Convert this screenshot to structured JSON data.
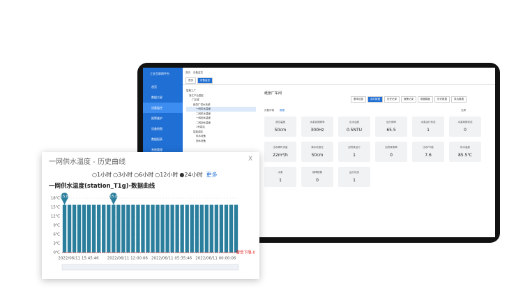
{
  "app": {
    "logo_text": "工业互联网平台",
    "menu": [
      "首页",
      "数据大屏",
      "设备监控",
      "报警维护",
      "设备地图",
      "数据报表",
      "系统管理"
    ],
    "breadcrumb": [
      "首页",
      "设备监控"
    ],
    "tabs": [
      "首页",
      "设备监控"
    ],
    "tree": [
      "智慧工厂",
      "浙江产业园区",
      "厂区域",
      "纸张厂供水系统",
      "一网供水温度",
      "二网供水温度",
      "一网回水温度",
      "二网回水温度",
      "1号泵站",
      "智能调控",
      "供水设备",
      "回水设备"
    ],
    "panel_title": "纸张厂车间",
    "panel_tabs": [
      "基本信息",
      "实时数据",
      "历史记录",
      "报警记录",
      "数据模板",
      "历史数据",
      "导出数据"
    ],
    "sub_tabs": [
      "设备详情",
      "数据"
    ],
    "view_label": "全屏",
    "cards": [
      {
        "label": "液位高度",
        "value": "50cm"
      },
      {
        "label": "水泵变频频率",
        "value": "300Hz"
      },
      {
        "label": "出水浊度",
        "value": "0.5NTU"
      },
      {
        "label": "运行频率",
        "value": "65.5"
      },
      {
        "label": "水泵运行状态",
        "value": "1"
      },
      {
        "label": "水泵故障状态",
        "value": "0"
      },
      {
        "label": "出水瞬时流量",
        "value": "22m³/h"
      },
      {
        "label": "清水池液位",
        "value": "50cm"
      },
      {
        "label": "加药泵运行",
        "value": "1"
      },
      {
        "label": "加药泵故障",
        "value": "0"
      },
      {
        "label": "出水PH值",
        "value": "7.6"
      },
      {
        "label": "供水温度",
        "value": "85.5℃"
      },
      {
        "label": "水泵",
        "value": "1"
      },
      {
        "label": "故障报警",
        "value": "0"
      },
      {
        "label": "运行状态",
        "value": "1"
      }
    ]
  },
  "popup": {
    "title": "一网供水温度 - 历史曲线",
    "close": "X",
    "ranges": [
      "○1小时",
      "○3小时",
      "○6小时",
      "○12小时",
      "●24小时"
    ],
    "more": "更多"
  },
  "chart_data": {
    "type": "bar",
    "title": "一网供水温度(station_T1g)-数据曲线",
    "categories": [
      "2022/06/11 15:45:46",
      null,
      null,
      null,
      null,
      null,
      null,
      null,
      null,
      null,
      "2022/06/11 12:00:06",
      null,
      null,
      null,
      null,
      null,
      null,
      null,
      null,
      "2022/06/11 05:35:46",
      null,
      null,
      null,
      null,
      null,
      null,
      null,
      null,
      "2022/06/11 00:00:06",
      null,
      null,
      null,
      null,
      null,
      null,
      null
    ],
    "values": [
      15.8,
      15.8,
      15.8,
      15.8,
      15.8,
      15.8,
      15.8,
      15.8,
      15.8,
      15.8,
      15.8,
      15.8,
      15.8,
      15.8,
      15.8,
      15.8,
      15.8,
      15.8,
      15.8,
      15.8,
      15.8,
      15.8,
      15.8,
      15.8,
      15.8,
      15.8,
      15.8,
      15.8,
      15.8,
      15.8,
      15.8,
      15.8,
      15.8,
      15.8,
      15.8,
      15.8
    ],
    "value_labels": [
      "15.8",
      null,
      null,
      null,
      null,
      null,
      null,
      null,
      null,
      null,
      "15.8",
      null,
      null,
      null,
      null,
      null,
      null,
      null,
      null,
      null,
      null,
      null,
      null,
      null,
      null,
      null,
      null,
      null,
      null,
      null,
      null,
      null,
      null,
      null,
      null,
      null
    ],
    "color": "#2b7f9d",
    "ylim": [
      0,
      18
    ],
    "yticks": [
      {
        "value": 0,
        "label": "0℃"
      },
      {
        "value": 3,
        "label": "3℃"
      },
      {
        "value": 6,
        "label": "6℃"
      },
      {
        "value": 9,
        "label": "9℃"
      },
      {
        "value": 12,
        "label": "12℃"
      },
      {
        "value": 15,
        "label": "15℃"
      },
      {
        "value": 18,
        "label": "18℃"
      }
    ],
    "grid": true,
    "threshold": {
      "value": 0,
      "label": "警告下限:0"
    }
  }
}
